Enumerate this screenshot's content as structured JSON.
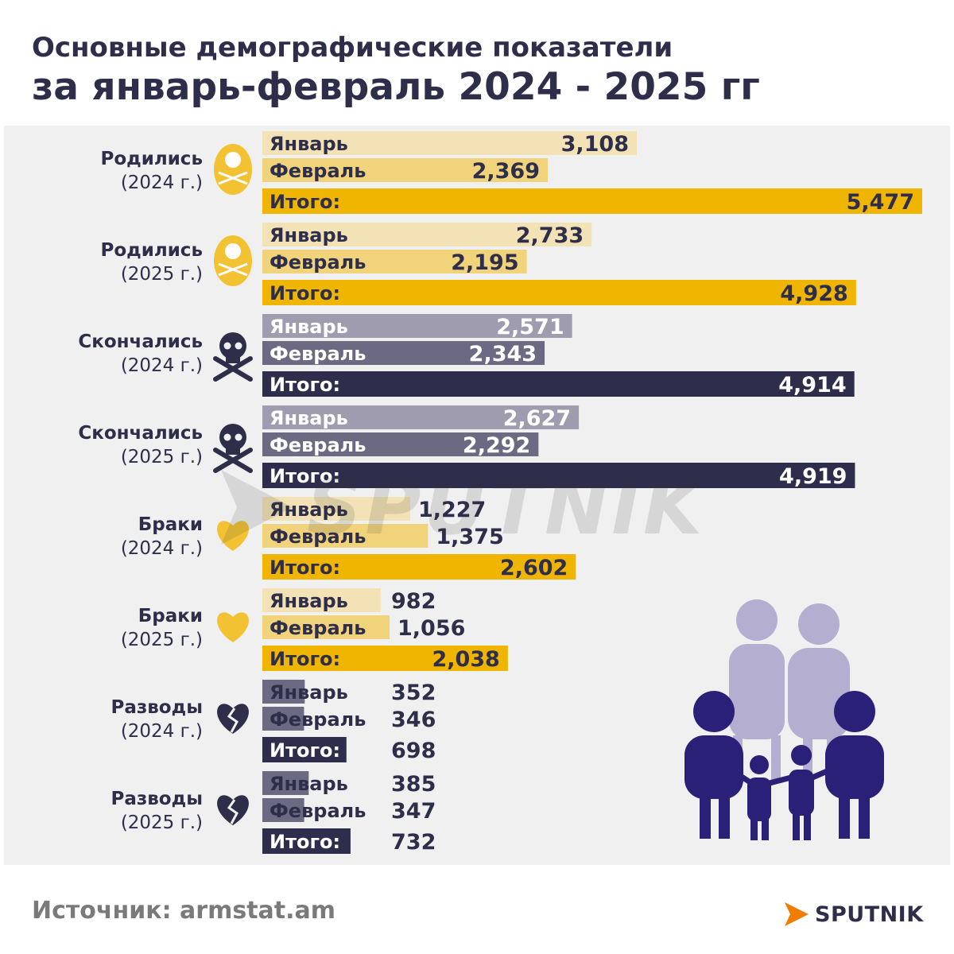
{
  "header": {
    "title_line1": "Основные демографические показатели",
    "title_line2": "за январь-февраль 2024 - 2025 гг"
  },
  "footer": {
    "source": "Источник: armstat.am",
    "brand": "SPUTNIK"
  },
  "colors": {
    "births_light": "#f2e2b5",
    "births_mid": "#f1d37c",
    "births_total": "#efb500",
    "deaths_light": "#9e9cae",
    "deaths_mid": "#6c6a82",
    "deaths_total": "#2f2d4c",
    "divorce_bar": "#6c6a82",
    "icon_yellow": "#f2c233",
    "icon_dark": "#2e2e4a",
    "family_light": "#b4aed0",
    "family_dark": "#2a2078"
  },
  "chart_data": {
    "type": "bar",
    "orientation": "horizontal",
    "categories": [
      "Январь",
      "Февраль",
      "Итого:"
    ],
    "groups": [
      {
        "label": "Родились",
        "year": "(2024 г.)",
        "icon": "baby-icon",
        "theme": "births",
        "values": [
          3108,
          2369,
          5477
        ],
        "value_labels": [
          "3,108",
          "2,369",
          "5,477"
        ]
      },
      {
        "label": "Родились",
        "year": "(2025 г.)",
        "icon": "baby-icon",
        "theme": "births",
        "values": [
          2733,
          2195,
          4928
        ],
        "value_labels": [
          "2,733",
          "2,195",
          "4,928"
        ]
      },
      {
        "label": "Скончались",
        "year": "(2024 г.)",
        "icon": "skull-icon",
        "theme": "deaths",
        "values": [
          2571,
          2343,
          4914
        ],
        "value_labels": [
          "2,571",
          "2,343",
          "4,914"
        ]
      },
      {
        "label": "Скончались",
        "year": "(2025 г.)",
        "icon": "skull-icon",
        "theme": "deaths",
        "values": [
          2627,
          2292,
          4919
        ],
        "value_labels": [
          "2,627",
          "2,292",
          "4,919"
        ]
      },
      {
        "label": "Браки",
        "year": "(2024 г.)",
        "icon": "heart-icon",
        "theme": "marriages",
        "values": [
          1227,
          1375,
          2602
        ],
        "value_labels": [
          "1,227",
          "1,375",
          "2,602"
        ]
      },
      {
        "label": "Браки",
        "year": "(2025 г.)",
        "icon": "heart-icon",
        "theme": "marriages",
        "values": [
          982,
          1056,
          2038
        ],
        "value_labels": [
          "982",
          "1,056",
          "2,038"
        ]
      },
      {
        "label": "Разводы",
        "year": "(2024 г.)",
        "icon": "broken-heart-icon",
        "theme": "divorces",
        "values": [
          352,
          346,
          698
        ],
        "value_labels": [
          "352",
          "346",
          "698"
        ]
      },
      {
        "label": "Разводы",
        "year": "(2025 г.)",
        "icon": "broken-heart-icon",
        "theme": "divorces",
        "values": [
          385,
          347,
          732
        ],
        "value_labels": [
          "385",
          "347",
          "732"
        ]
      }
    ]
  }
}
